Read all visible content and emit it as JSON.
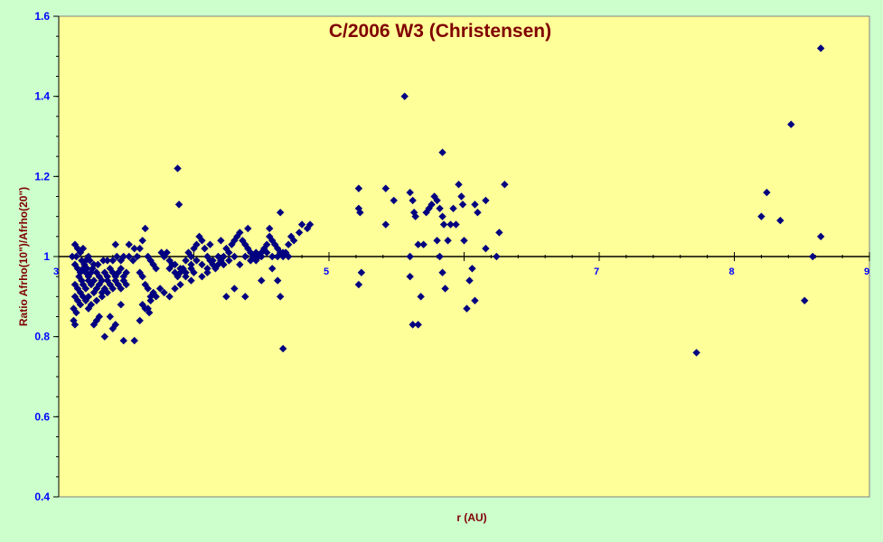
{
  "chart_data": {
    "type": "scatter",
    "title": "C/2006 W3 (Christensen)",
    "xlabel": "r (AU)",
    "ylabel": "Ratio Afrho(10\")/Afrho(20\")",
    "xlim": [
      3,
      9
    ],
    "ylim": [
      0.4,
      1.6
    ],
    "x_ticks": [
      3,
      5,
      7,
      8,
      9
    ],
    "y_ticks": [
      0.4,
      0.6,
      0.8,
      1.0,
      1.2,
      1.4,
      1.6
    ],
    "y_tick_labels": [
      "0.4",
      "0.6",
      "0.8",
      "1",
      "1.2",
      "1.4",
      "1.6"
    ],
    "reference_line_y": 1.0,
    "grid": false,
    "legend": "none",
    "marker": "diamond",
    "colors": {
      "figure_background": "#ccffcc",
      "plot_background": "#ffff99",
      "marker": "#000080",
      "title": "#800000",
      "axis_title": "#800000",
      "tick_label": "#0000ff"
    },
    "points": [
      [
        3.12,
        1.03
      ],
      [
        3.14,
        1.02
      ],
      [
        3.16,
        1.01
      ],
      [
        3.18,
        1.02
      ],
      [
        3.1,
        1.0
      ],
      [
        3.13,
        1.0
      ],
      [
        3.17,
        0.99
      ],
      [
        3.2,
        0.99
      ],
      [
        3.22,
        1.0
      ],
      [
        3.26,
        0.98
      ],
      [
        3.29,
        0.98
      ],
      [
        3.33,
        0.99
      ],
      [
        3.36,
        0.99
      ],
      [
        3.4,
        0.99
      ],
      [
        3.43,
        1.0
      ],
      [
        3.46,
        0.99
      ],
      [
        3.48,
        1.0
      ],
      [
        3.52,
        1.0
      ],
      [
        3.55,
        0.99
      ],
      [
        3.58,
        1.0
      ],
      [
        3.12,
        0.98
      ],
      [
        3.14,
        0.97
      ],
      [
        3.16,
        0.96
      ],
      [
        3.18,
        0.97
      ],
      [
        3.2,
        0.96
      ],
      [
        3.22,
        0.95
      ],
      [
        3.24,
        0.96
      ],
      [
        3.26,
        0.94
      ],
      [
        3.28,
        0.96
      ],
      [
        3.3,
        0.95
      ],
      [
        3.32,
        0.94
      ],
      [
        3.34,
        0.96
      ],
      [
        3.36,
        0.95
      ],
      [
        3.38,
        0.97
      ],
      [
        3.4,
        0.96
      ],
      [
        3.42,
        0.95
      ],
      [
        3.44,
        0.96
      ],
      [
        3.46,
        0.97
      ],
      [
        3.48,
        0.95
      ],
      [
        3.5,
        0.96
      ],
      [
        3.12,
        0.93
      ],
      [
        3.14,
        0.92
      ],
      [
        3.16,
        0.91
      ],
      [
        3.18,
        0.93
      ],
      [
        3.2,
        0.92
      ],
      [
        3.22,
        0.94
      ],
      [
        3.24,
        0.93
      ],
      [
        3.26,
        0.91
      ],
      [
        3.28,
        0.92
      ],
      [
        3.3,
        0.93
      ],
      [
        3.32,
        0.91
      ],
      [
        3.34,
        0.92
      ],
      [
        3.36,
        0.94
      ],
      [
        3.38,
        0.93
      ],
      [
        3.4,
        0.92
      ],
      [
        3.42,
        0.94
      ],
      [
        3.44,
        0.93
      ],
      [
        3.46,
        0.92
      ],
      [
        3.48,
        0.94
      ],
      [
        3.5,
        0.93
      ],
      [
        3.12,
        0.9
      ],
      [
        3.14,
        0.89
      ],
      [
        3.16,
        0.88
      ],
      [
        3.18,
        0.9
      ],
      [
        3.2,
        0.89
      ],
      [
        3.22,
        0.9
      ],
      [
        3.24,
        0.88
      ],
      [
        3.28,
        0.89
      ],
      [
        3.32,
        0.9
      ],
      [
        3.36,
        0.91
      ],
      [
        3.11,
        0.87
      ],
      [
        3.13,
        0.86
      ],
      [
        3.11,
        0.84
      ],
      [
        3.12,
        0.83
      ],
      [
        3.15,
        0.95
      ],
      [
        3.17,
        0.94
      ],
      [
        3.19,
        0.98
      ],
      [
        3.21,
        0.97
      ],
      [
        3.23,
        0.99
      ],
      [
        3.25,
        0.97
      ],
      [
        3.22,
        0.87
      ],
      [
        3.26,
        0.83
      ],
      [
        3.28,
        0.84
      ],
      [
        3.3,
        0.85
      ],
      [
        3.34,
        0.8
      ],
      [
        3.38,
        0.85
      ],
      [
        3.4,
        0.82
      ],
      [
        3.42,
        0.83
      ],
      [
        3.46,
        0.88
      ],
      [
        3.48,
        0.79
      ],
      [
        3.56,
        0.79
      ],
      [
        3.6,
        0.84
      ],
      [
        3.64,
        0.87
      ],
      [
        3.67,
        0.86
      ],
      [
        3.7,
        0.91
      ],
      [
        3.72,
        0.9
      ],
      [
        3.75,
        0.92
      ],
      [
        3.42,
        1.03
      ],
      [
        3.52,
        1.03
      ],
      [
        3.56,
        1.02
      ],
      [
        3.6,
        1.02
      ],
      [
        3.62,
        1.04
      ],
      [
        3.64,
        1.07
      ],
      [
        3.66,
        1.0
      ],
      [
        3.68,
        0.99
      ],
      [
        3.7,
        0.98
      ],
      [
        3.72,
        0.97
      ],
      [
        3.6,
        0.96
      ],
      [
        3.62,
        0.95
      ],
      [
        3.64,
        0.93
      ],
      [
        3.66,
        0.92
      ],
      [
        3.68,
        0.9
      ],
      [
        3.62,
        0.88
      ],
      [
        3.66,
        0.87
      ],
      [
        3.68,
        0.89
      ],
      [
        3.76,
        1.01
      ],
      [
        3.78,
        1.0
      ],
      [
        3.8,
        1.01
      ],
      [
        3.82,
        0.99
      ],
      [
        3.84,
        0.98
      ],
      [
        3.86,
        0.96
      ],
      [
        3.88,
        0.95
      ],
      [
        3.9,
        0.96
      ],
      [
        3.92,
        0.97
      ],
      [
        3.94,
        0.99
      ],
      [
        3.96,
        1.01
      ],
      [
        3.98,
        1.0
      ],
      [
        4.0,
        1.02
      ],
      [
        4.02,
        1.03
      ],
      [
        4.04,
        1.05
      ],
      [
        4.06,
        1.04
      ],
      [
        4.08,
        1.02
      ],
      [
        4.1,
        1.0
      ],
      [
        4.12,
        0.99
      ],
      [
        4.14,
        0.98
      ],
      [
        4.16,
        0.97
      ],
      [
        4.18,
        0.98
      ],
      [
        4.2,
        0.99
      ],
      [
        4.22,
        1.0
      ],
      [
        4.24,
        1.02
      ],
      [
        4.26,
        1.01
      ],
      [
        4.28,
        1.03
      ],
      [
        4.3,
        1.04
      ],
      [
        4.32,
        1.05
      ],
      [
        4.34,
        1.06
      ],
      [
        4.36,
        1.04
      ],
      [
        4.38,
        1.03
      ],
      [
        4.4,
        1.02
      ],
      [
        4.42,
        1.01
      ],
      [
        4.44,
        1.0
      ],
      [
        4.46,
        0.99
      ],
      [
        4.48,
        1.0
      ],
      [
        4.5,
        1.01
      ],
      [
        4.52,
        1.02
      ],
      [
        4.54,
        1.03
      ],
      [
        4.56,
        1.05
      ],
      [
        4.58,
        1.04
      ],
      [
        4.6,
        1.03
      ],
      [
        4.62,
        1.02
      ],
      [
        4.64,
        1.01
      ],
      [
        4.66,
        1.0
      ],
      [
        4.68,
        1.01
      ],
      [
        4.7,
        1.03
      ],
      [
        4.72,
        1.05
      ],
      [
        4.74,
        1.04
      ],
      [
        4.78,
        1.06
      ],
      [
        4.8,
        1.08
      ],
      [
        4.84,
        1.07
      ],
      [
        4.86,
        1.08
      ],
      [
        3.78,
        1.0
      ],
      [
        3.82,
        0.97
      ],
      [
        3.86,
        0.98
      ],
      [
        3.9,
        0.97
      ],
      [
        3.94,
        0.96
      ],
      [
        3.98,
        0.98
      ],
      [
        4.02,
        0.99
      ],
      [
        4.06,
        0.98
      ],
      [
        4.1,
        0.97
      ],
      [
        4.14,
        0.99
      ],
      [
        4.18,
        1.0
      ],
      [
        4.22,
        0.98
      ],
      [
        4.26,
        0.99
      ],
      [
        4.3,
        1.0
      ],
      [
        4.34,
        0.98
      ],
      [
        4.38,
        1.0
      ],
      [
        4.42,
        0.99
      ],
      [
        4.46,
        1.01
      ],
      [
        4.5,
        1.0
      ],
      [
        4.54,
        1.01
      ],
      [
        4.58,
        1.0
      ],
      [
        4.62,
        1.0
      ],
      [
        4.66,
        1.01
      ],
      [
        4.7,
        1.0
      ],
      [
        3.78,
        0.91
      ],
      [
        3.82,
        0.9
      ],
      [
        3.86,
        0.92
      ],
      [
        3.9,
        0.93
      ],
      [
        3.94,
        0.95
      ],
      [
        3.98,
        0.94
      ],
      [
        4.06,
        0.95
      ],
      [
        4.1,
        0.96
      ],
      [
        4.24,
        0.9
      ],
      [
        4.3,
        0.92
      ],
      [
        4.38,
        0.9
      ],
      [
        4.5,
        0.94
      ],
      [
        4.62,
        0.94
      ],
      [
        4.64,
        0.9
      ],
      [
        4.58,
        0.97
      ],
      [
        4.66,
        0.77
      ],
      [
        3.88,
        1.22
      ],
      [
        3.89,
        1.13
      ],
      [
        4.64,
        1.11
      ],
      [
        3.98,
        0.97
      ],
      [
        4.0,
        0.96
      ],
      [
        4.12,
        1.03
      ],
      [
        4.2,
        1.04
      ],
      [
        4.4,
        1.07
      ],
      [
        4.56,
        1.07
      ],
      [
        5.22,
        1.17
      ],
      [
        5.22,
        1.12
      ],
      [
        5.23,
        1.11
      ],
      [
        5.24,
        0.96
      ],
      [
        5.22,
        0.93
      ],
      [
        5.42,
        1.17
      ],
      [
        5.42,
        1.08
      ],
      [
        5.48,
        1.14
      ],
      [
        5.56,
        1.4
      ],
      [
        5.6,
        1.16
      ],
      [
        5.62,
        1.14
      ],
      [
        5.63,
        1.11
      ],
      [
        5.64,
        1.1
      ],
      [
        5.6,
        1.0
      ],
      [
        5.6,
        0.95
      ],
      [
        5.62,
        0.83
      ],
      [
        5.66,
        0.83
      ],
      [
        5.66,
        1.03
      ],
      [
        5.7,
        1.03
      ],
      [
        5.68,
        0.9
      ],
      [
        5.72,
        1.11
      ],
      [
        5.74,
        1.12
      ],
      [
        5.76,
        1.13
      ],
      [
        5.78,
        1.15
      ],
      [
        5.8,
        1.14
      ],
      [
        5.82,
        1.12
      ],
      [
        5.84,
        1.1
      ],
      [
        5.85,
        1.08
      ],
      [
        5.8,
        1.04
      ],
      [
        5.82,
        1.0
      ],
      [
        5.84,
        0.96
      ],
      [
        5.86,
        0.92
      ],
      [
        5.84,
        1.26
      ],
      [
        5.88,
        1.04
      ],
      [
        5.9,
        1.08
      ],
      [
        5.92,
        1.12
      ],
      [
        5.94,
        1.08
      ],
      [
        5.96,
        1.18
      ],
      [
        5.98,
        1.15
      ],
      [
        5.99,
        1.13
      ],
      [
        6.0,
        1.04
      ],
      [
        6.02,
        0.87
      ],
      [
        6.04,
        0.94
      ],
      [
        6.06,
        0.97
      ],
      [
        6.08,
        0.89
      ],
      [
        6.08,
        1.13
      ],
      [
        6.1,
        1.11
      ],
      [
        6.16,
        1.14
      ],
      [
        6.16,
        1.02
      ],
      [
        6.24,
        1.0
      ],
      [
        6.26,
        1.06
      ],
      [
        6.3,
        1.18
      ],
      [
        7.72,
        0.76
      ],
      [
        8.2,
        1.1
      ],
      [
        8.24,
        1.16
      ],
      [
        8.34,
        1.09
      ],
      [
        8.42,
        1.33
      ],
      [
        8.52,
        0.89
      ],
      [
        8.58,
        1.0
      ],
      [
        8.64,
        1.05
      ],
      [
        8.64,
        1.52
      ]
    ]
  }
}
